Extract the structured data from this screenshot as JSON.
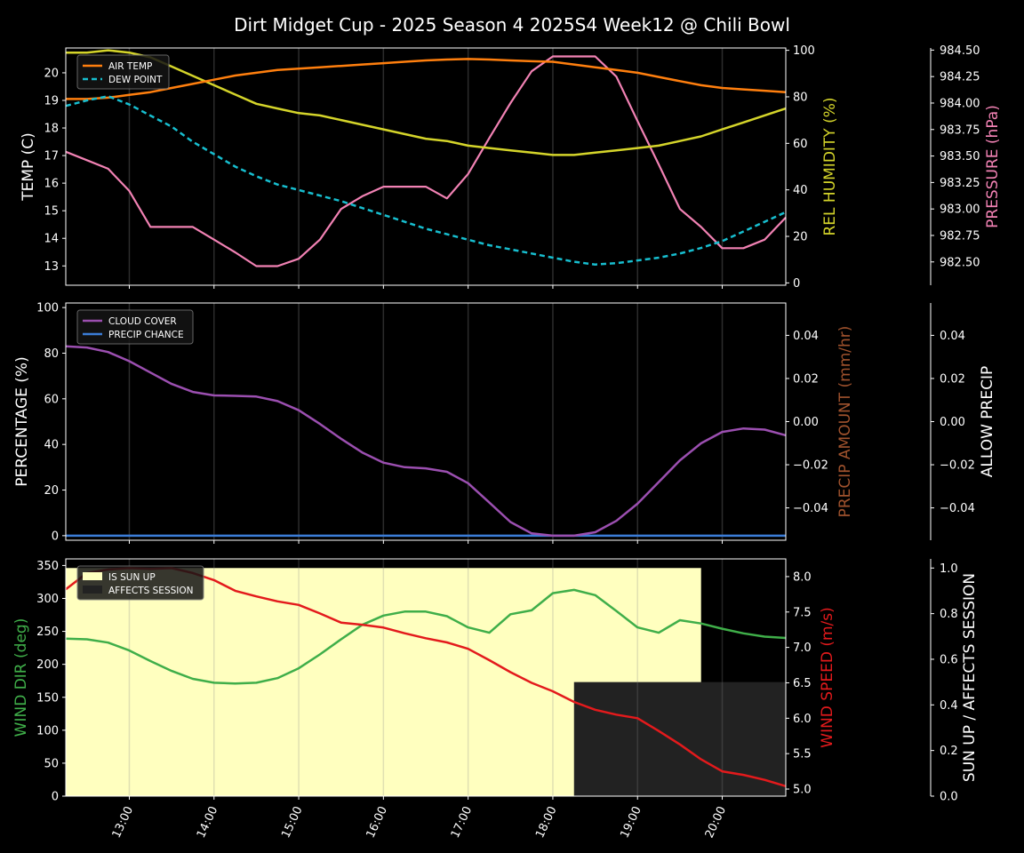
{
  "chart_data": [
    {
      "type": "line",
      "title": "Dirt Midget Cup - 2025 Season 4 2025S4 Week12 @ Chili Bowl",
      "ylabel": "TEMP (C)",
      "y2label": "REL HUMIDITY (%)",
      "y3label": "PRESSURE (hPa)",
      "ylim": [
        12.3,
        20.9
      ],
      "y2lim": [
        -1,
        101
      ],
      "y3lim": [
        982.28,
        984.52
      ],
      "yticks": [
        13,
        14,
        15,
        16,
        17,
        18,
        19,
        20
      ],
      "y2ticks": [
        0,
        20,
        40,
        60,
        80,
        100
      ],
      "y3ticks": [
        "982.50",
        "982.75",
        "983.00",
        "983.25",
        "983.50",
        "983.75",
        "984.00",
        "984.25",
        "984.50"
      ],
      "legend": [
        "AIR TEMP",
        "DEW POINT"
      ],
      "colors": {
        "air_temp": "#ff7f0e",
        "dew_point": "#17becf",
        "humidity": "#d4d42a",
        "pressure": "#f282b4"
      },
      "x": [
        12.25,
        12.5,
        12.75,
        13.0,
        13.25,
        13.5,
        13.75,
        14.0,
        14.25,
        14.5,
        14.75,
        15.0,
        15.25,
        15.5,
        15.75,
        16.0,
        16.25,
        16.5,
        16.75,
        17.0,
        17.25,
        17.5,
        17.75,
        18.0,
        18.25,
        18.5,
        18.75,
        19.0,
        19.25,
        19.5,
        19.75,
        20.0,
        20.25,
        20.5,
        20.75
      ],
      "series": [
        {
          "name": "AIR TEMP",
          "axis": "left",
          "values": [
            19.05,
            19.05,
            19.1,
            19.2,
            19.3,
            19.45,
            19.6,
            19.75,
            19.9,
            20.0,
            20.1,
            20.15,
            20.2,
            20.25,
            20.3,
            20.35,
            20.4,
            20.45,
            20.48,
            20.5,
            20.48,
            20.45,
            20.42,
            20.4,
            20.3,
            20.2,
            20.1,
            20.0,
            19.85,
            19.7,
            19.55,
            19.45,
            19.4,
            19.35,
            19.3
          ]
        },
        {
          "name": "DEW POINT",
          "axis": "left",
          "values": [
            18.8,
            19.0,
            19.15,
            18.85,
            18.45,
            18.05,
            17.5,
            17.05,
            16.6,
            16.25,
            15.95,
            15.75,
            15.55,
            15.35,
            15.1,
            14.85,
            14.6,
            14.35,
            14.15,
            13.95,
            13.75,
            13.6,
            13.45,
            13.3,
            13.15,
            13.05,
            13.1,
            13.2,
            13.3,
            13.45,
            13.65,
            13.9,
            14.25,
            14.6,
            14.95
          ]
        },
        {
          "name": "REL HUMIDITY",
          "axis": "right",
          "values": [
            99,
            99,
            100,
            99,
            97,
            93,
            89,
            85,
            81,
            77,
            75,
            73,
            72,
            70,
            68,
            66,
            64,
            62,
            61,
            59,
            58,
            57,
            56,
            55,
            55,
            56,
            57,
            58,
            59,
            61,
            63,
            66,
            69,
            72,
            75
          ]
        },
        {
          "name": "PRESSURE",
          "axis": "right2",
          "values": [
            983.54,
            983.46,
            983.38,
            983.17,
            982.83,
            982.83,
            982.83,
            982.71,
            982.59,
            982.46,
            982.46,
            982.53,
            982.71,
            983.0,
            983.12,
            983.21,
            983.21,
            983.21,
            983.1,
            983.33,
            983.67,
            984.0,
            984.3,
            984.44,
            984.44,
            984.44,
            984.25,
            983.83,
            983.42,
            983.0,
            982.83,
            982.63,
            982.63,
            982.71,
            982.92
          ]
        }
      ]
    },
    {
      "type": "line",
      "ylabel": "PERCENTAGE (%)",
      "y2label": "PRECIP AMOUNT (mm/hr)",
      "y3label": "ALLOW PRECIP",
      "ylim": [
        -2,
        102
      ],
      "y2lim": [
        -0.055,
        0.055
      ],
      "y3lim": [
        -0.055,
        0.055
      ],
      "yticks": [
        0,
        20,
        40,
        60,
        80,
        100
      ],
      "y2ticks": [
        -0.04,
        -0.02,
        0.0,
        0.02,
        0.04
      ],
      "y2ticklabels": [
        "−0.04",
        "−0.02",
        "0.00",
        "0.02",
        "0.04"
      ],
      "y3ticklabels": [
        "−0.04",
        "−0.02",
        "0.00",
        "0.02",
        "0.04"
      ],
      "legend": [
        "CLOUD COVER",
        "PRECIP CHANCE"
      ],
      "colors": {
        "cloud_cover": "#9b4fb0",
        "precip_chance": "#3b7dd8",
        "precip_amount_label": "#a0522d"
      },
      "x": [
        12.25,
        12.5,
        12.75,
        13.0,
        13.25,
        13.5,
        13.75,
        14.0,
        14.25,
        14.5,
        14.75,
        15.0,
        15.25,
        15.5,
        15.75,
        16.0,
        16.25,
        16.5,
        16.75,
        17.0,
        17.25,
        17.5,
        17.75,
        18.0,
        18.25,
        18.5,
        18.75,
        19.0,
        19.25,
        19.5,
        19.75,
        20.0,
        20.25,
        20.5,
        20.75
      ],
      "series": [
        {
          "name": "CLOUD COVER",
          "values": [
            83,
            82.5,
            80.5,
            76.5,
            71.5,
            66.5,
            63,
            61.5,
            61.3,
            61,
            59,
            55,
            49,
            42.5,
            36.5,
            32,
            30,
            29.5,
            28,
            23,
            14.5,
            6,
            1,
            0,
            0,
            1.5,
            6.5,
            14,
            23.5,
            33,
            40.5,
            45.5,
            47,
            46.5,
            44
          ]
        },
        {
          "name": "PRECIP CHANCE",
          "values": [
            0,
            0,
            0,
            0,
            0,
            0,
            0,
            0,
            0,
            0,
            0,
            0,
            0,
            0,
            0,
            0,
            0,
            0,
            0,
            0,
            0,
            0,
            0,
            0,
            0,
            0,
            0,
            0,
            0,
            0,
            0,
            0,
            0,
            0,
            0
          ]
        }
      ]
    },
    {
      "type": "line",
      "ylabel": "WIND DIR (deg)",
      "y2label": "WIND SPEED (m/s)",
      "y3label": "SUN UP / AFFECTS SESSION",
      "ylim": [
        0,
        360
      ],
      "y2lim": [
        4.9,
        8.25
      ],
      "y3lim": [
        0,
        1.04
      ],
      "yticks": [
        0,
        50,
        100,
        150,
        200,
        250,
        300,
        350
      ],
      "y2ticks": [
        "5.0",
        "5.5",
        "6.0",
        "6.5",
        "7.0",
        "7.5",
        "8.0"
      ],
      "y3ticks": [
        "0.0",
        "0.2",
        "0.4",
        "0.6",
        "0.8",
        "1.0"
      ],
      "legend": [
        "IS SUN UP",
        "AFFECTS SESSION"
      ],
      "colors": {
        "wind_dir": "#3fae49",
        "wind_speed": "#e31a1c",
        "sun_up": "#ffffbf",
        "affects_session": "#222222"
      },
      "sun_up": {
        "start": 12.25,
        "end": 19.75,
        "value": 1.0
      },
      "affects_session": {
        "start": 18.25,
        "end": 20.75,
        "value": 0.5
      },
      "x": [
        12.25,
        12.5,
        12.75,
        13.0,
        13.25,
        13.5,
        13.75,
        14.0,
        14.25,
        14.5,
        14.75,
        15.0,
        15.25,
        15.5,
        15.75,
        16.0,
        16.25,
        16.5,
        16.75,
        17.0,
        17.25,
        17.5,
        17.75,
        18.0,
        18.25,
        18.5,
        18.75,
        19.0,
        19.25,
        19.5,
        19.75,
        20.0,
        20.25,
        20.5,
        20.75
      ],
      "series": [
        {
          "name": "WIND DIR",
          "axis": "left",
          "values": [
            239,
            238,
            233,
            221,
            205,
            190,
            178,
            172,
            171,
            172,
            179,
            194,
            215,
            238,
            260,
            274,
            280,
            280,
            273,
            256,
            248,
            276,
            282,
            308,
            313,
            305,
            281,
            256,
            248,
            267,
            262,
            254,
            247,
            242,
            240
          ]
        },
        {
          "name": "WIND SPEED",
          "axis": "right",
          "values": [
            7.82,
            8.05,
            8.1,
            8.12,
            8.11,
            8.12,
            8.05,
            7.95,
            7.8,
            7.72,
            7.65,
            7.6,
            7.48,
            7.35,
            7.32,
            7.28,
            7.2,
            7.13,
            7.07,
            6.98,
            6.82,
            6.65,
            6.5,
            6.38,
            6.23,
            6.12,
            6.05,
            6.0,
            5.82,
            5.63,
            5.42,
            5.25,
            5.2,
            5.13,
            5.04
          ]
        }
      ]
    }
  ],
  "x_ticks": [
    "13:00",
    "14:00",
    "15:00",
    "16:00",
    "17:00",
    "18:00",
    "19:00",
    "20:00"
  ]
}
